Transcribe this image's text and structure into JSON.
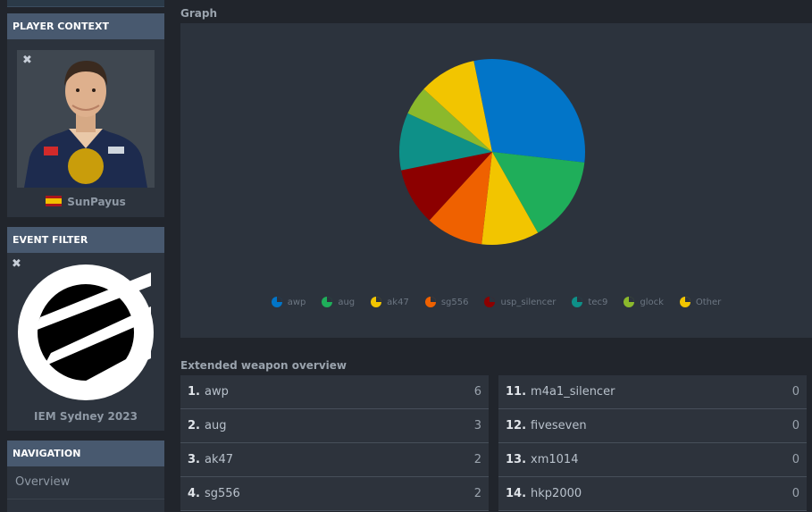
{
  "sidebar": {
    "player_context": {
      "header": "PLAYER CONTEXT",
      "close_glyph": "✖",
      "player_name": "SunPayus",
      "flag": "spain-flag-icon"
    },
    "event_filter": {
      "header": "EVENT FILTER",
      "close_glyph": "✖",
      "event_name": "IEM Sydney 2023",
      "logo": "esl-logo-icon"
    },
    "navigation": {
      "header": "NAVIGATION",
      "items": [
        {
          "label": "Overview"
        }
      ]
    }
  },
  "graph": {
    "title": "Graph"
  },
  "chart_data": {
    "type": "pie",
    "categories": [
      "awp",
      "aug",
      "ak47",
      "sg556",
      "usp_silencer",
      "tec9",
      "glock",
      "Other"
    ],
    "values": [
      6,
      3,
      2,
      2,
      2,
      2,
      1,
      2
    ],
    "colors": [
      "#0275c8",
      "#1fae5a",
      "#f2c500",
      "#ef6100",
      "#8c0000",
      "#0e9088",
      "#8bb92c",
      "#f2c500"
    ],
    "start_category_clockwise_from_top": "awp",
    "legend_position": "bottom"
  },
  "weapons": {
    "title": "Extended weapon overview",
    "left": [
      {
        "rank": "1.",
        "name": "awp",
        "count": "6"
      },
      {
        "rank": "2.",
        "name": "aug",
        "count": "3"
      },
      {
        "rank": "3.",
        "name": "ak47",
        "count": "2"
      },
      {
        "rank": "4.",
        "name": "sg556",
        "count": "2"
      }
    ],
    "right": [
      {
        "rank": "11.",
        "name": "m4a1_silencer",
        "count": "0"
      },
      {
        "rank": "12.",
        "name": "fiveseven",
        "count": "0"
      },
      {
        "rank": "13.",
        "name": "xm1014",
        "count": "0"
      },
      {
        "rank": "14.",
        "name": "hkp2000",
        "count": "0"
      }
    ]
  }
}
